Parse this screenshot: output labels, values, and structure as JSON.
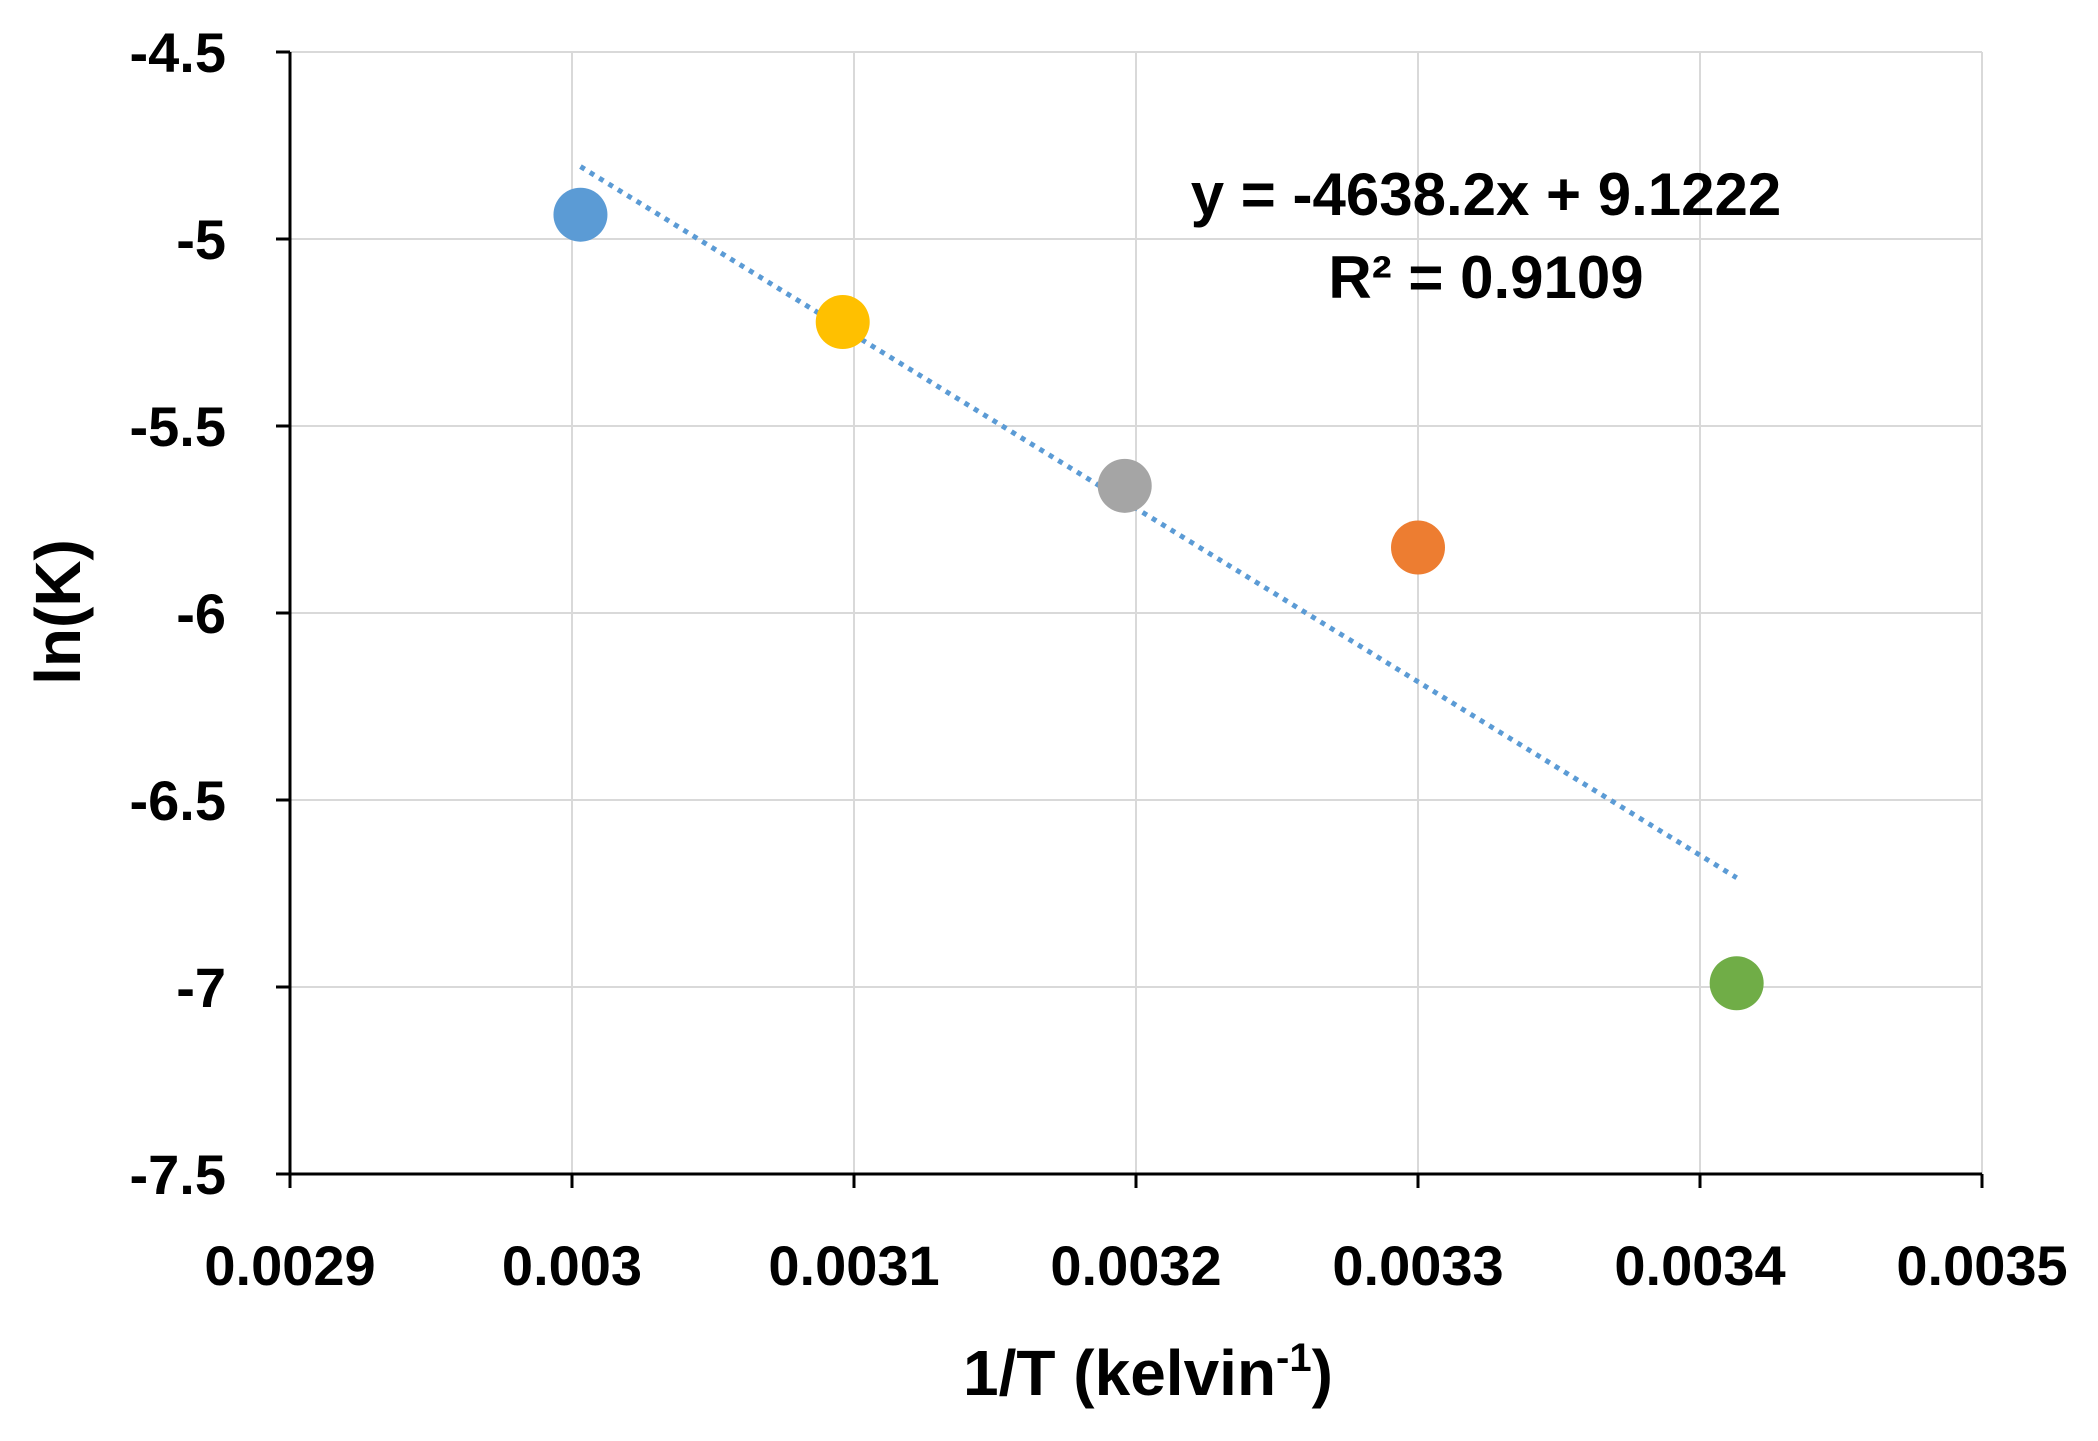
{
  "chart_data": {
    "type": "scatter",
    "title": "",
    "xlabel": "1/T (kelvin",
    "xlabel_superscript": "-1",
    "xlabel_suffix": ")",
    "ylabel": "ln(K)",
    "xlim": [
      0.0029,
      0.0035
    ],
    "ylim": [
      -7.5,
      -4.5
    ],
    "x_ticks": [
      0.0029,
      0.003,
      0.0031,
      0.0032,
      0.0033,
      0.0034,
      0.0035
    ],
    "x_tick_labels": [
      "0.0029",
      "0.003",
      "0.0031",
      "0.0032",
      "0.0033",
      "0.0034",
      "0.0035"
    ],
    "y_ticks": [
      -4.5,
      -5,
      -5.5,
      -6,
      -6.5,
      -7,
      -7.5
    ],
    "y_tick_labels": [
      "-4.5",
      "-5",
      "-5.5",
      "-6",
      "-6.5",
      "-7",
      "-7.5"
    ],
    "grid": true,
    "points": [
      {
        "x": 0.003003,
        "y": -4.935,
        "color": "#5b9bd5"
      },
      {
        "x": 0.003096,
        "y": -5.222,
        "color": "#ffc000"
      },
      {
        "x": 0.003196,
        "y": -5.66,
        "color": "#a5a5a5"
      },
      {
        "x": 0.0033,
        "y": -5.825,
        "color": "#ed7d31"
      },
      {
        "x": 0.003413,
        "y": -6.99,
        "color": "#70ad47"
      }
    ],
    "trendline": {
      "slope": -4638.2,
      "intercept": 9.1222,
      "x_range": [
        0.003003,
        0.003413
      ],
      "color": "#5b9bd5",
      "style": "dotted"
    },
    "annotations": {
      "equation": "y = -4638.2x + 9.1222",
      "r_squared": "R² = 0.9109"
    }
  }
}
